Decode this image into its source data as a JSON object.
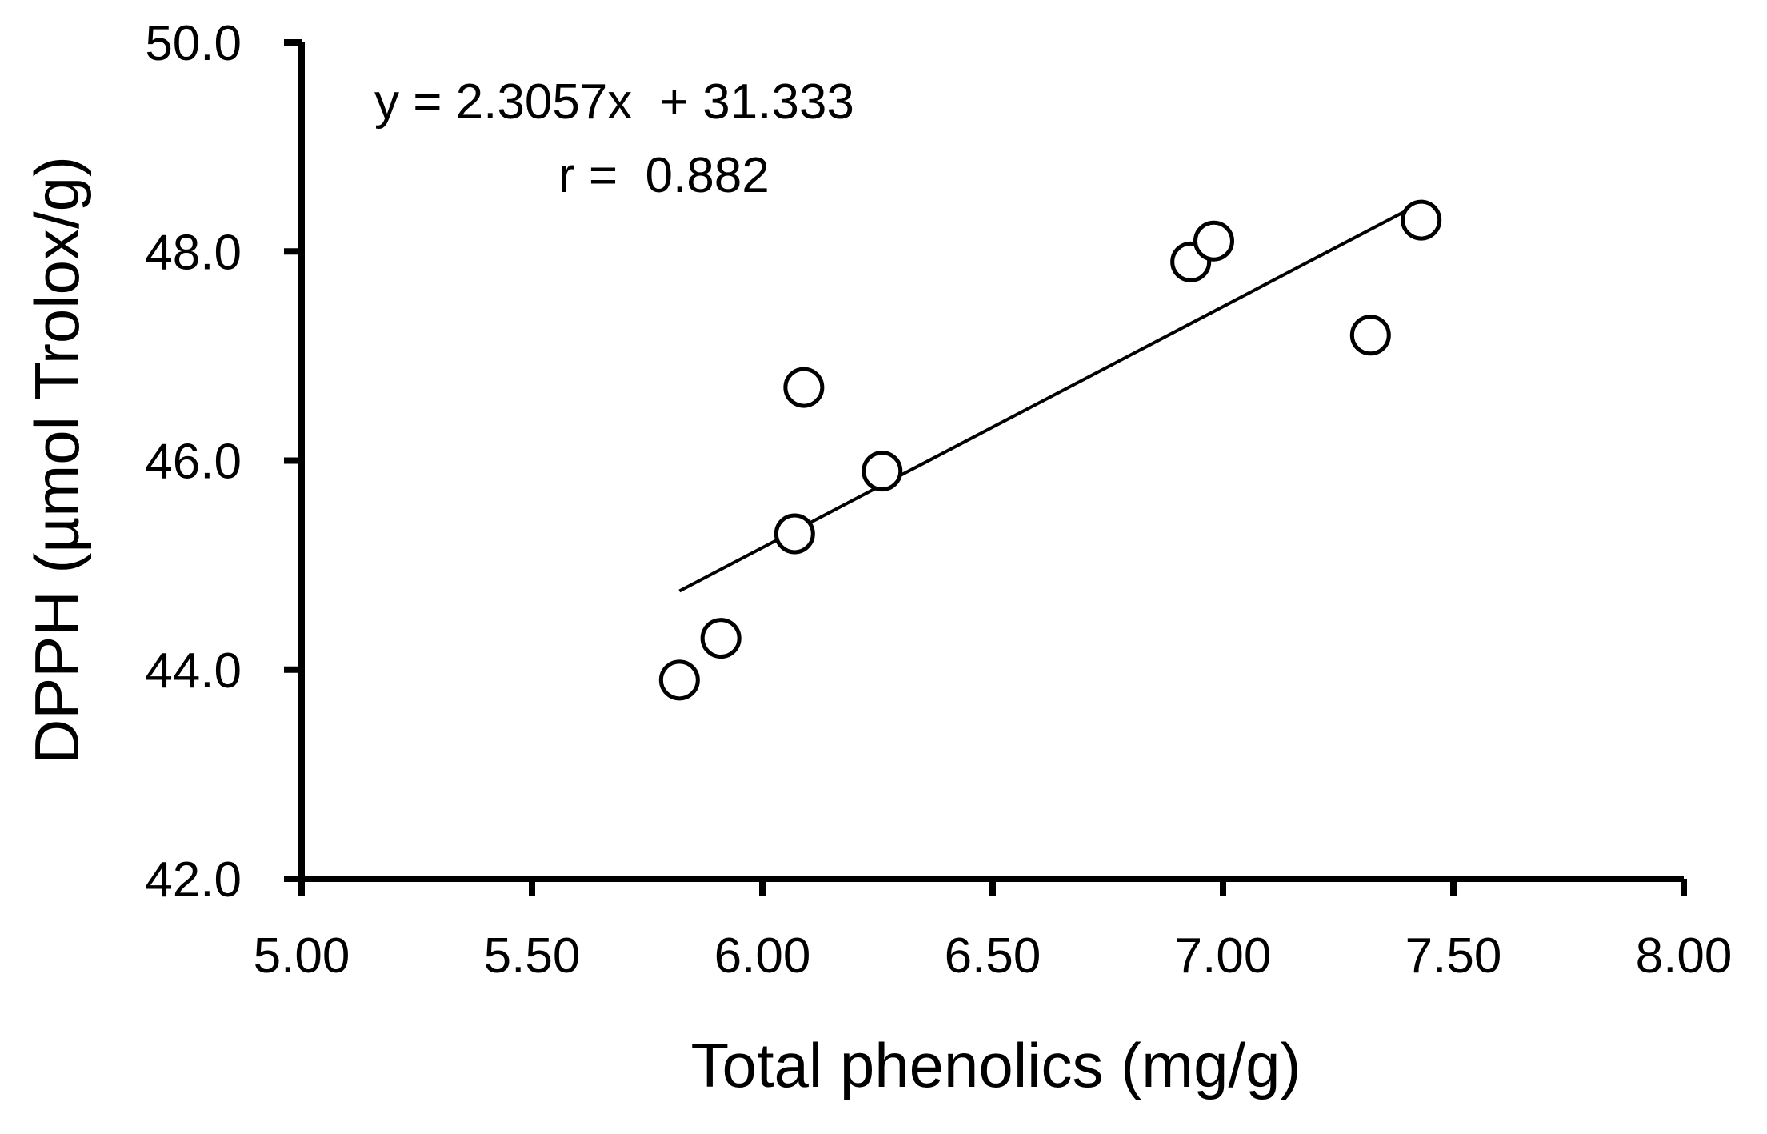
{
  "chart_data": {
    "type": "scatter",
    "title": "",
    "xlabel": "Total phenolics (mg/g)",
    "ylabel": "DPPH (µmol Trolox/g)",
    "xlim": [
      5.0,
      8.0
    ],
    "ylim": [
      42.0,
      50.0
    ],
    "x_ticks": [
      "5.00",
      "5.50",
      "6.00",
      "6.50",
      "7.00",
      "7.50",
      "8.00"
    ],
    "y_ticks": [
      "42.0",
      "44.0",
      "46.0",
      "48.0",
      "50.0"
    ],
    "grid": false,
    "series": [
      {
        "points": [
          {
            "x": 5.82,
            "y": 43.9
          },
          {
            "x": 5.91,
            "y": 44.3
          },
          {
            "x": 6.07,
            "y": 45.3
          },
          {
            "x": 6.09,
            "y": 46.7
          },
          {
            "x": 6.26,
            "y": 45.9
          },
          {
            "x": 6.93,
            "y": 47.9
          },
          {
            "x": 6.98,
            "y": 48.1
          },
          {
            "x": 7.32,
            "y": 47.2
          },
          {
            "x": 7.43,
            "y": 48.3
          }
        ]
      }
    ],
    "trendline": {
      "slope": 2.3057,
      "intercept": 31.333,
      "x_range": [
        5.82,
        7.43
      ]
    },
    "annotations": [
      "y = 2.3057x  + 31.333",
      "r =  0.882"
    ]
  }
}
